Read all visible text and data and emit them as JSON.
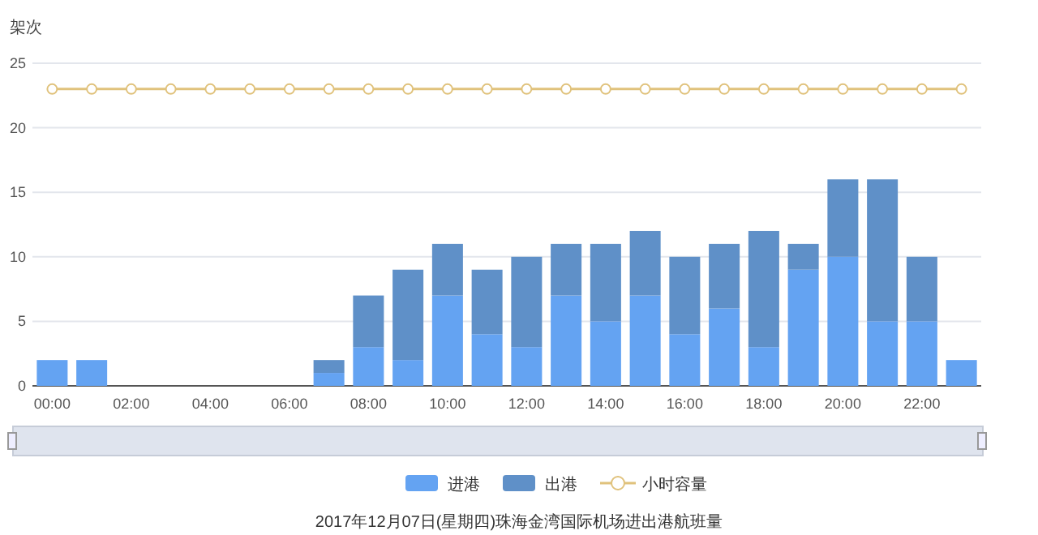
{
  "chart_data": {
    "type": "bar",
    "title": "2017年12月07日(星期四)珠海金湾国际机场进出港航班量",
    "ylabel": "架次",
    "categories": [
      "00:00",
      null,
      "02:00",
      null,
      "04:00",
      null,
      "06:00",
      null,
      "08:00",
      null,
      "10:00",
      null,
      "12:00",
      null,
      "14:00",
      null,
      "16:00",
      null,
      "18:00",
      null,
      "20:00",
      null,
      "22:00",
      null
    ],
    "stacked": true,
    "series": [
      {
        "name": "进港",
        "color": "#64a3f2",
        "values": [
          2,
          2,
          0,
          0,
          0,
          0,
          0,
          1,
          3,
          2,
          7,
          4,
          3,
          7,
          5,
          7,
          4,
          6,
          3,
          9,
          10,
          5,
          5,
          2
        ]
      },
      {
        "name": "出港",
        "color": "#5f90c8",
        "values": [
          0,
          0,
          0,
          0,
          0,
          0,
          0,
          1,
          4,
          7,
          4,
          5,
          7,
          4,
          6,
          5,
          6,
          5,
          9,
          2,
          6,
          11,
          5,
          0
        ]
      },
      {
        "name": "小时容量",
        "type": "line",
        "color": "#e0c27c",
        "marker": "circle",
        "values": [
          23,
          23,
          23,
          23,
          23,
          23,
          23,
          23,
          23,
          23,
          23,
          23,
          23,
          23,
          23,
          23,
          23,
          23,
          23,
          23,
          23,
          23,
          23,
          23
        ]
      }
    ],
    "ylim": [
      0,
      25
    ],
    "yticks": [
      0,
      5,
      10,
      15,
      20,
      25
    ],
    "grid": "y",
    "legend": "bottom"
  }
}
